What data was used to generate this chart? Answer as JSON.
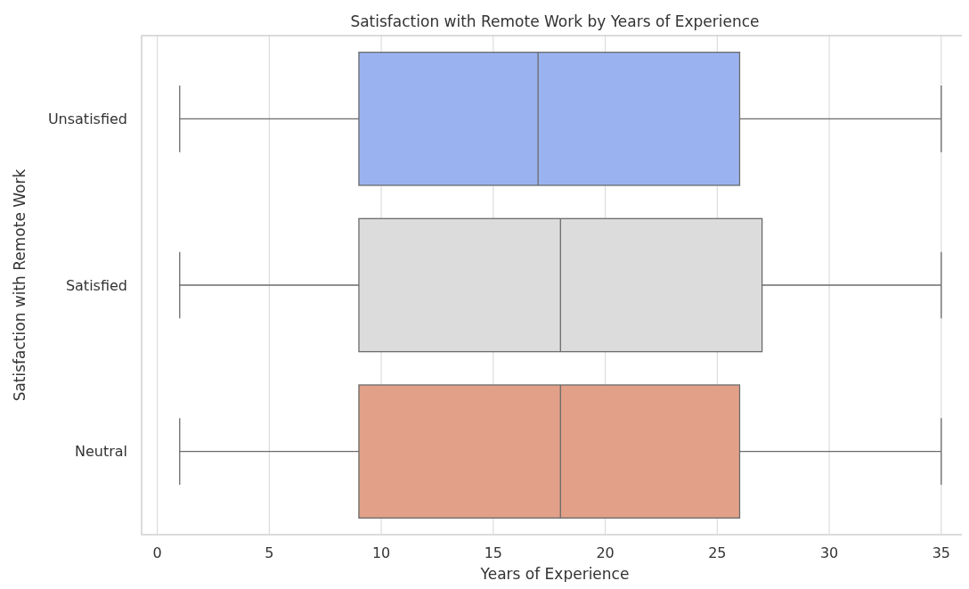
{
  "chart_data": {
    "type": "box",
    "orientation": "horizontal",
    "title": "Satisfaction with Remote Work by Years of Experience",
    "xlabel": "Years of Experience",
    "ylabel": "Satisfaction with Remote Work",
    "categories": [
      "Unsatisfied",
      "Satisfied",
      "Neutral"
    ],
    "colors": [
      "#9ab3f0",
      "#dcdcdc",
      "#e2a089"
    ],
    "boxes": [
      {
        "low": 1,
        "q1": 9,
        "median": 17,
        "q3": 26,
        "high": 35
      },
      {
        "low": 1,
        "q1": 9,
        "median": 18,
        "q3": 27,
        "high": 35
      },
      {
        "low": 1,
        "q1": 9,
        "median": 18,
        "q3": 26,
        "high": 35
      }
    ],
    "xlim": [
      -0.7,
      36.2
    ],
    "xticks": [
      0,
      5,
      10,
      15,
      20,
      25,
      30,
      35
    ],
    "grid": "x"
  }
}
